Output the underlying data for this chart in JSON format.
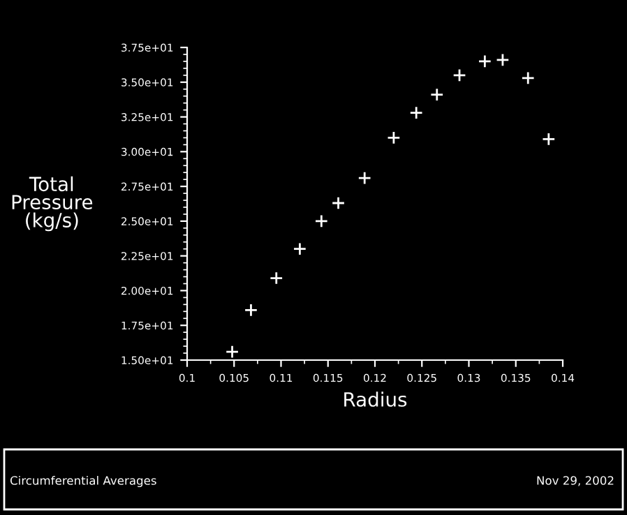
{
  "chart_data": {
    "type": "scatter",
    "xlabel": "Radius",
    "ylabel": "Total\nPressure\n(kg/s)",
    "x": [
      0.1048,
      0.1068,
      0.1095,
      0.112,
      0.1143,
      0.1161,
      0.1189,
      0.122,
      0.1244,
      0.1266,
      0.129,
      0.1317,
      0.1336,
      0.1363,
      0.1385
    ],
    "series": [
      {
        "color": "#ffffff",
        "values": [
          15.6,
          18.6,
          20.9,
          23.0,
          25.0,
          26.3,
          28.1,
          31.0,
          32.8,
          34.1,
          35.5,
          36.5,
          36.6,
          35.3,
          30.9
        ]
      }
    ],
    "marker": "cross",
    "grid": false,
    "xlim": [
      0.1,
      0.14
    ],
    "xticks": [
      0.1,
      0.105,
      0.11,
      0.115,
      0.12,
      0.125,
      0.13,
      0.135,
      0.14
    ],
    "ylim": [
      15,
      37.5
    ],
    "yticks": [
      {
        "value": 15,
        "label": "1.50e+01"
      },
      {
        "value": 17.5,
        "label": "1.75e+01"
      },
      {
        "value": 20,
        "label": "2.00e+01"
      },
      {
        "value": 22.5,
        "label": "2.25e+01"
      },
      {
        "value": 25,
        "label": "2.50e+01"
      },
      {
        "value": 27.5,
        "label": "2.75e+01"
      },
      {
        "value": 30,
        "label": "3.00e+01"
      },
      {
        "value": 32.5,
        "label": "3.25e+01"
      },
      {
        "value": 35,
        "label": "3.50e+01"
      },
      {
        "value": 37.5,
        "label": "3.75e+01"
      }
    ],
    "annotations": [
      "Circumferential Averages",
      "Nov 29, 2002"
    ]
  }
}
